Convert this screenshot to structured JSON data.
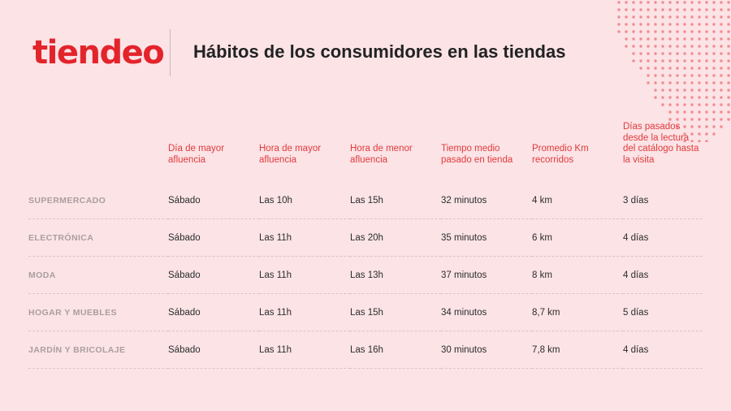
{
  "brand": {
    "logo_text": "tiendeo",
    "color": "#e3242b"
  },
  "page": {
    "title": "Hábitos de los consumidores en las tiendas"
  },
  "table": {
    "headers": [
      "",
      "Día de mayor afluencia",
      "Hora de mayor afluencia",
      "Hora de menor afluencia",
      "Tiempo medio pasado en tienda",
      "Promedio Km recorridos",
      "Días pasados desde la lectura del catálogo hasta la visita"
    ],
    "rows": [
      [
        "SUPERMERCADO",
        "Sábado",
        "Las 10h",
        "Las 15h",
        "32 minutos",
        "4 km",
        "3 días"
      ],
      [
        "ELECTRÓNICA",
        "Sábado",
        "Las 11h",
        "Las 20h",
        "35 minutos",
        "6 km",
        "4 días"
      ],
      [
        "MODA",
        "Sábado",
        "Las 11h",
        "Las 13h",
        "37 minutos",
        "8 km",
        "4 días"
      ],
      [
        "HOGAR Y MUEBLES",
        "Sábado",
        "Las 11h",
        "Las 15h",
        "34 minutos",
        "8,7 km",
        "5 días"
      ],
      [
        "JARDÍN Y BRICOLAJE",
        "Sábado",
        "Las 11h",
        "Las 16h",
        "30 minutos",
        "7,8 km",
        "4 días"
      ]
    ]
  },
  "colors": {
    "background": "#fbe3e6",
    "header_text": "#e23a3a",
    "dots": "#f08c8f"
  }
}
